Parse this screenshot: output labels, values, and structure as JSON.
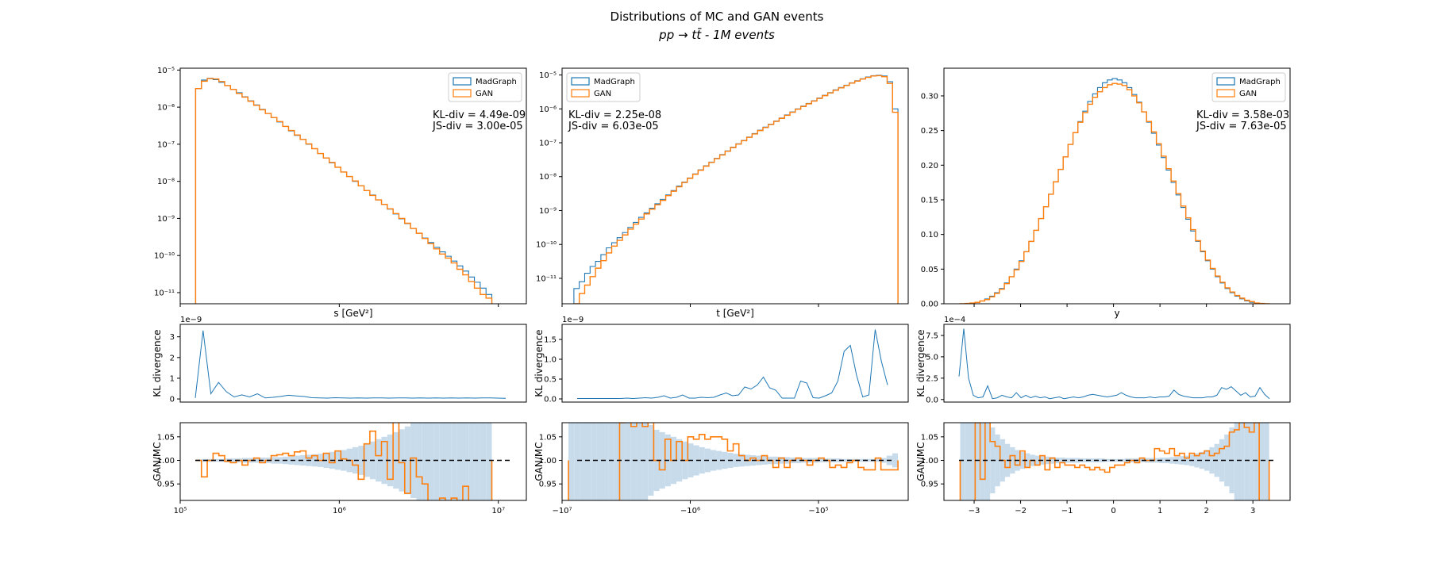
{
  "figure": {
    "title_line1": "Distributions of MC and GAN events",
    "title_line2": "pp → tt̄ - 1M events"
  },
  "colors": {
    "mc": "#1f77b4",
    "gan": "#ff7f0e",
    "band": "#c7dbeb",
    "ref": "#000000"
  },
  "legend_labels": [
    "MadGraph",
    "GAN"
  ],
  "chart_data": [
    {
      "id": "s",
      "type": "histogram-step",
      "xlabel": "s [GeV²]",
      "xscale": "log",
      "yscale": "log",
      "xlim": [
        100000,
        15000000
      ],
      "ylim_exp": [
        -11.3,
        -4.95
      ],
      "xticks": [
        "10⁵",
        "10⁶",
        "10⁷"
      ],
      "xtick_values": [
        100000,
        1000000,
        10000000
      ],
      "yticks": [
        "10⁻¹¹",
        "10⁻¹⁰",
        "10⁻⁹",
        "10⁻⁸",
        "10⁻⁷",
        "10⁻⁶",
        "10⁻⁵"
      ],
      "ytick_exps": [
        -11,
        -10,
        -9,
        -8,
        -7,
        -6,
        -5
      ],
      "legend_position": "top-right",
      "kl_text": "KL-div = 4.49e-09",
      "js_text": "JS-div = 3.00e-05",
      "kl_offset": "1e−9",
      "kl_ylim": [
        -0.15,
        3.6
      ],
      "kl_yticks": [
        "0",
        "1",
        "2",
        "3"
      ],
      "kl_ytick_values": [
        0,
        1,
        2,
        3
      ],
      "ratio_ylim": [
        0.915,
        1.08
      ],
      "ratio_yticks": [
        "0.95",
        "1.00",
        "1.05"
      ],
      "ratio_ytick_values": [
        0.95,
        1.0,
        1.05
      ],
      "hist_range": [
        125000,
        9100000
      ],
      "mc_log10": [
        -5.5,
        -5.27,
        -5.22,
        -5.26,
        -5.33,
        -5.42,
        -5.52,
        -5.61,
        -5.72,
        -5.83,
        -5.94,
        -6.06,
        -6.17,
        -6.28,
        -6.4,
        -6.52,
        -6.64,
        -6.76,
        -6.87,
        -7.0,
        -7.12,
        -7.25,
        -7.37,
        -7.5,
        -7.62,
        -7.75,
        -7.87,
        -8.0,
        -8.12,
        -8.25,
        -8.37,
        -8.5,
        -8.62,
        -8.75,
        -8.88,
        -9.01,
        -9.14,
        -9.27,
        -9.4,
        -9.53,
        -9.65,
        -9.78,
        -9.9,
        -10.02,
        -10.15,
        -10.28,
        -10.42,
        -10.58,
        -10.72,
        -10.88,
        -11.05
      ],
      "gan_log10": [
        -5.5,
        -5.3,
        -5.23,
        -5.24,
        -5.31,
        -5.42,
        -5.52,
        -5.63,
        -5.73,
        -5.84,
        -5.95,
        -6.07,
        -6.17,
        -6.28,
        -6.39,
        -6.52,
        -6.63,
        -6.75,
        -6.87,
        -6.99,
        -7.12,
        -7.25,
        -7.37,
        -7.49,
        -7.62,
        -7.75,
        -7.87,
        -7.99,
        -8.12,
        -8.25,
        -8.38,
        -8.5,
        -8.62,
        -8.74,
        -8.87,
        -9.0,
        -9.13,
        -9.27,
        -9.4,
        -9.54,
        -9.68,
        -9.82,
        -9.96,
        -10.07,
        -10.2,
        -10.37,
        -10.52,
        -10.7,
        -10.88,
        -11.05,
        -11.15
      ],
      "kl_values": [
        0.05,
        3.3,
        0.25,
        0.8,
        0.35,
        0.1,
        0.2,
        0.1,
        0.25,
        0.05,
        0.08,
        0.12,
        0.18,
        0.15,
        0.12,
        0.06,
        0.05,
        0.04,
        0.06,
        0.05,
        0.04,
        0.05,
        0.04,
        0.05,
        0.05,
        0.04,
        0.05,
        0.05,
        0.04,
        0.05,
        0.04,
        0.05,
        0.04,
        0.05,
        0.04,
        0.05,
        0.04,
        0.05,
        0.05,
        0.04,
        0.03
      ],
      "ratio_values": [
        1.0,
        0.965,
        1.0,
        1.015,
        1.01,
        0.998,
        0.995,
        1.0,
        0.99,
        1.0,
        1.005,
        0.995,
        1.0,
        1.01,
        1.012,
        1.015,
        1.01,
        1.018,
        1.02,
        1.005,
        1.01,
        1.0,
        1.015,
        0.995,
        1.02,
        1.003,
        1.0,
        0.99,
        0.96,
        1.035,
        1.062,
        1.01,
        1.04,
        0.96,
        1.085,
        0.995,
        0.93,
        1.005,
        0.965,
        0.95,
        0.9,
        0.9,
        0.92,
        0.9,
        0.92,
        0.89,
        0.945,
        0.9,
        0.9,
        0.9,
        0.9
      ],
      "band_halfwidth": [
        0.002,
        0.003,
        0.003,
        0.003,
        0.003,
        0.004,
        0.004,
        0.004,
        0.005,
        0.005,
        0.005,
        0.006,
        0.006,
        0.007,
        0.007,
        0.008,
        0.009,
        0.01,
        0.011,
        0.012,
        0.013,
        0.014,
        0.016,
        0.018,
        0.02,
        0.022,
        0.025,
        0.028,
        0.031,
        0.035,
        0.04,
        0.045,
        0.05,
        0.055,
        0.06,
        0.066,
        0.072,
        0.08,
        0.088,
        0.1,
        0.12,
        0.14,
        0.16,
        0.18,
        0.2,
        0.2,
        0.2,
        0.2,
        0.2,
        0.2,
        0.2
      ]
    },
    {
      "id": "t",
      "type": "histogram-step",
      "xlabel": "t [GeV²]",
      "xscale": "symlog-negative",
      "yscale": "log",
      "xlim": [
        7.0,
        4.3
      ],
      "ylim_exp": [
        -11.75,
        -4.8
      ],
      "xticks": [
        "−10⁷",
        "−10⁶",
        "−10⁵"
      ],
      "xtick_values": [
        7,
        6,
        5
      ],
      "yticks": [
        "10⁻¹¹",
        "10⁻¹⁰",
        "10⁻⁹",
        "10⁻⁸",
        "10⁻⁷",
        "10⁻⁶",
        "10⁻⁵"
      ],
      "ytick_exps": [
        -11,
        -10,
        -9,
        -8,
        -7,
        -6,
        -5
      ],
      "legend_position": "top-left",
      "kl_text": "KL-div = 2.25e-08",
      "js_text": "JS-div = 6.03e-05",
      "kl_offset": "1e−9",
      "kl_ylim": [
        -0.08,
        1.88
      ],
      "kl_yticks": [
        "0.0",
        "0.5",
        "1.0",
        "1.5"
      ],
      "kl_ytick_values": [
        0,
        0.5,
        1.0,
        1.5
      ],
      "ratio_ylim": [
        0.915,
        1.08
      ],
      "ratio_yticks": [
        "0.95",
        "1.00",
        "1.05"
      ],
      "ratio_ytick_values": [
        0.95,
        1.0,
        1.05
      ],
      "hist_range": [
        6.95,
        4.38
      ],
      "mc_log10": [
        -11.9,
        -11.3,
        -11.1,
        -10.85,
        -10.65,
        -10.5,
        -10.3,
        -10.1,
        -9.95,
        -9.8,
        -9.65,
        -9.5,
        -9.35,
        -9.2,
        -9.07,
        -8.93,
        -8.8,
        -8.67,
        -8.54,
        -8.41,
        -8.28,
        -8.16,
        -8.04,
        -7.92,
        -7.8,
        -7.68,
        -7.57,
        -7.46,
        -7.35,
        -7.24,
        -7.13,
        -7.03,
        -6.93,
        -6.83,
        -6.73,
        -6.63,
        -6.54,
        -6.45,
        -6.36,
        -6.27,
        -6.18,
        -6.09,
        -6.0,
        -5.92,
        -5.84,
        -5.76,
        -5.68,
        -5.6,
        -5.52,
        -5.44,
        -5.37,
        -5.3,
        -5.23,
        -5.17,
        -5.11,
        -5.06,
        -5.02,
        -5.01,
        -5.03,
        -5.2,
        -6.0
      ],
      "gan_log10": [
        -12.2,
        -11.75,
        -11.45,
        -11.2,
        -10.95,
        -10.7,
        -10.48,
        -10.25,
        -10.05,
        -9.88,
        -9.72,
        -9.55,
        -9.4,
        -9.25,
        -9.1,
        -8.96,
        -8.83,
        -8.7,
        -8.56,
        -8.43,
        -8.3,
        -8.17,
        -8.05,
        -7.93,
        -7.81,
        -7.69,
        -7.58,
        -7.47,
        -7.36,
        -7.25,
        -7.14,
        -7.04,
        -6.94,
        -6.84,
        -6.74,
        -6.64,
        -6.55,
        -6.46,
        -6.37,
        -6.28,
        -6.19,
        -6.1,
        -6.01,
        -5.93,
        -5.85,
        -5.77,
        -5.69,
        -5.61,
        -5.53,
        -5.45,
        -5.38,
        -5.31,
        -5.24,
        -5.18,
        -5.12,
        -5.07,
        -5.03,
        -5.02,
        -5.05,
        -5.25,
        -6.1
      ],
      "kl_values": [
        0.01,
        0.01,
        0.01,
        0.01,
        0.01,
        0.01,
        0.01,
        0.01,
        0.02,
        0.01,
        0.02,
        0.03,
        0.02,
        0.04,
        0.08,
        0.02,
        0.04,
        0.1,
        0.02,
        0.02,
        0.04,
        0.03,
        0.04,
        0.1,
        0.15,
        0.08,
        0.1,
        0.3,
        0.25,
        0.35,
        0.55,
        0.28,
        0.22,
        0.02,
        0.02,
        0.02,
        0.45,
        0.4,
        0.03,
        0.02,
        0.08,
        0.15,
        0.45,
        1.2,
        1.35,
        0.6,
        0.05,
        0.1,
        1.75,
        0.95,
        0.35
      ],
      "ratio_values": [
        0.9,
        0.9,
        0.9,
        0.9,
        0.9,
        0.9,
        0.9,
        0.9,
        0.9,
        1.08,
        1.1,
        1.072,
        1.1,
        1.072,
        1.1,
        1.0,
        0.98,
        1.045,
        1.0,
        1.04,
        1.0,
        1.05,
        1.045,
        1.055,
        1.045,
        1.05,
        1.05,
        1.045,
        1.02,
        1.035,
        1.01,
        1.0,
        1.005,
        1.0,
        1.01,
        1.0,
        0.985,
        1.005,
        0.985,
        1.0,
        1.005,
        1.0,
        0.99,
        1.0,
        1.005,
        1.0,
        0.985,
        0.99,
        0.985,
        0.995,
        1.0,
        0.985,
        0.98,
        0.98,
        1.005,
        0.98,
        0.98,
        0.98
      ],
      "band_halfwidth": [
        0.2,
        0.2,
        0.2,
        0.2,
        0.2,
        0.2,
        0.2,
        0.2,
        0.2,
        0.2,
        0.16,
        0.12,
        0.1,
        0.085,
        0.075,
        0.065,
        0.06,
        0.055,
        0.05,
        0.045,
        0.04,
        0.036,
        0.032,
        0.028,
        0.025,
        0.022,
        0.02,
        0.018,
        0.016,
        0.014,
        0.013,
        0.012,
        0.011,
        0.01,
        0.009,
        0.008,
        0.008,
        0.007,
        0.007,
        0.006,
        0.006,
        0.005,
        0.005,
        0.005,
        0.004,
        0.004,
        0.004,
        0.004,
        0.003,
        0.003,
        0.003,
        0.003,
        0.003,
        0.003,
        0.003,
        0.005,
        0.01,
        0.015
      ]
    },
    {
      "id": "y",
      "type": "histogram-step",
      "xlabel": "y",
      "xscale": "linear",
      "yscale": "linear",
      "xlim": [
        -3.65,
        3.8
      ],
      "ylim": [
        0,
        0.34
      ],
      "xticks": [
        "−3",
        "−2",
        "−1",
        "0",
        "1",
        "2",
        "3"
      ],
      "xtick_values": [
        -3,
        -2,
        -1,
        0,
        1,
        2,
        3
      ],
      "yticks": [
        "0.00",
        "0.05",
        "0.10",
        "0.15",
        "0.20",
        "0.25",
        "0.30"
      ],
      "ytick_values": [
        0,
        0.05,
        0.1,
        0.15,
        0.2,
        0.25,
        0.3
      ],
      "legend_position": "top-right",
      "kl_text": "KL-div = 3.58e-03",
      "js_text": "JS-div = 7.63e-05",
      "kl_offset": "1e−4",
      "kl_ylim": [
        -0.3,
        8.8
      ],
      "kl_yticks": [
        "0.0",
        "2.5",
        "5.0",
        "7.5"
      ],
      "kl_ytick_values": [
        0,
        2.5,
        5.0,
        7.5
      ],
      "ratio_ylim": [
        0.915,
        1.08
      ],
      "ratio_yticks": [
        "0.95",
        "1.00",
        "1.05"
      ],
      "ratio_ytick_values": [
        0.95,
        1.0,
        1.05
      ],
      "hist_range": [
        -3.3,
        3.35
      ],
      "mc_values": [
        0.0,
        0.0005,
        0.001,
        0.002,
        0.004,
        0.007,
        0.011,
        0.016,
        0.022,
        0.03,
        0.039,
        0.05,
        0.062,
        0.075,
        0.09,
        0.106,
        0.123,
        0.14,
        0.158,
        0.176,
        0.194,
        0.212,
        0.23,
        0.247,
        0.263,
        0.278,
        0.292,
        0.303,
        0.312,
        0.319,
        0.323,
        0.325,
        0.323,
        0.319,
        0.312,
        0.302,
        0.291,
        0.277,
        0.262,
        0.246,
        0.229,
        0.211,
        0.193,
        0.175,
        0.157,
        0.139,
        0.122,
        0.105,
        0.09,
        0.075,
        0.062,
        0.05,
        0.039,
        0.03,
        0.022,
        0.016,
        0.011,
        0.007,
        0.004,
        0.002,
        0.001,
        0.0005,
        0.0
      ],
      "gan_values": [
        0.0,
        0.0005,
        0.001,
        0.002,
        0.004,
        0.006,
        0.01,
        0.015,
        0.021,
        0.029,
        0.039,
        0.049,
        0.061,
        0.075,
        0.09,
        0.106,
        0.123,
        0.14,
        0.158,
        0.176,
        0.194,
        0.212,
        0.23,
        0.247,
        0.262,
        0.276,
        0.288,
        0.298,
        0.306,
        0.312,
        0.316,
        0.318,
        0.317,
        0.315,
        0.309,
        0.3,
        0.29,
        0.277,
        0.263,
        0.248,
        0.231,
        0.213,
        0.195,
        0.177,
        0.159,
        0.141,
        0.124,
        0.107,
        0.091,
        0.076,
        0.063,
        0.051,
        0.04,
        0.031,
        0.023,
        0.017,
        0.012,
        0.008,
        0.005,
        0.003,
        0.001,
        0.0005,
        0.0
      ],
      "kl_values": [
        2.7,
        8.3,
        2.5,
        0.5,
        0.2,
        0.3,
        1.6,
        0.1,
        0.2,
        0.5,
        0.3,
        0.2,
        0.8,
        0.2,
        0.5,
        0.2,
        0.4,
        0.2,
        0.3,
        0.1,
        0.2,
        0.3,
        0.1,
        0.2,
        0.3,
        0.2,
        0.3,
        0.5,
        0.6,
        0.5,
        0.4,
        0.3,
        0.4,
        0.5,
        0.8,
        0.5,
        0.3,
        0.2,
        0.2,
        0.2,
        0.3,
        0.2,
        0.3,
        0.3,
        0.4,
        1.1,
        0.6,
        0.4,
        0.3,
        0.2,
        0.2,
        0.2,
        0.3,
        0.3,
        0.5,
        1.4,
        1.2,
        1.5,
        1.0,
        0.5,
        0.8,
        0.3,
        0.4,
        1.4,
        0.6,
        0.1
      ],
      "ratio_values": [
        0.9,
        0.9,
        0.9,
        1.08,
        0.96,
        1.1,
        1.04,
        1.03,
        1.0,
        0.985,
        1.01,
        0.99,
        1.02,
        0.985,
        1.0,
        0.99,
        1.01,
        0.98,
        1.005,
        0.985,
        0.995,
        0.99,
        0.99,
        0.985,
        0.99,
        0.985,
        0.98,
        0.985,
        0.98,
        0.975,
        0.985,
        0.99,
        0.99,
        0.995,
        1.0,
        0.995,
        1.005,
        1.0,
        1.0,
        1.025,
        1.02,
        1.015,
        1.025,
        1.01,
        1.015,
        1.005,
        1.015,
        1.01,
        1.015,
        1.02,
        1.01,
        1.015,
        1.025,
        1.03,
        1.06,
        1.065,
        1.1,
        1.07,
        1.06,
        1.08,
        0.9,
        0.9
      ],
      "band_halfwidth": [
        0.2,
        0.2,
        0.2,
        0.15,
        0.12,
        0.09,
        0.07,
        0.055,
        0.045,
        0.035,
        0.028,
        0.022,
        0.018,
        0.015,
        0.012,
        0.01,
        0.009,
        0.008,
        0.007,
        0.006,
        0.006,
        0.005,
        0.005,
        0.005,
        0.004,
        0.004,
        0.004,
        0.004,
        0.004,
        0.003,
        0.003,
        0.003,
        0.003,
        0.004,
        0.004,
        0.004,
        0.004,
        0.005,
        0.005,
        0.005,
        0.006,
        0.006,
        0.007,
        0.008,
        0.009,
        0.01,
        0.012,
        0.015,
        0.018,
        0.022,
        0.028,
        0.035,
        0.045,
        0.055,
        0.07,
        0.09,
        0.12,
        0.15,
        0.2,
        0.2,
        0.2,
        0.2
      ]
    }
  ]
}
